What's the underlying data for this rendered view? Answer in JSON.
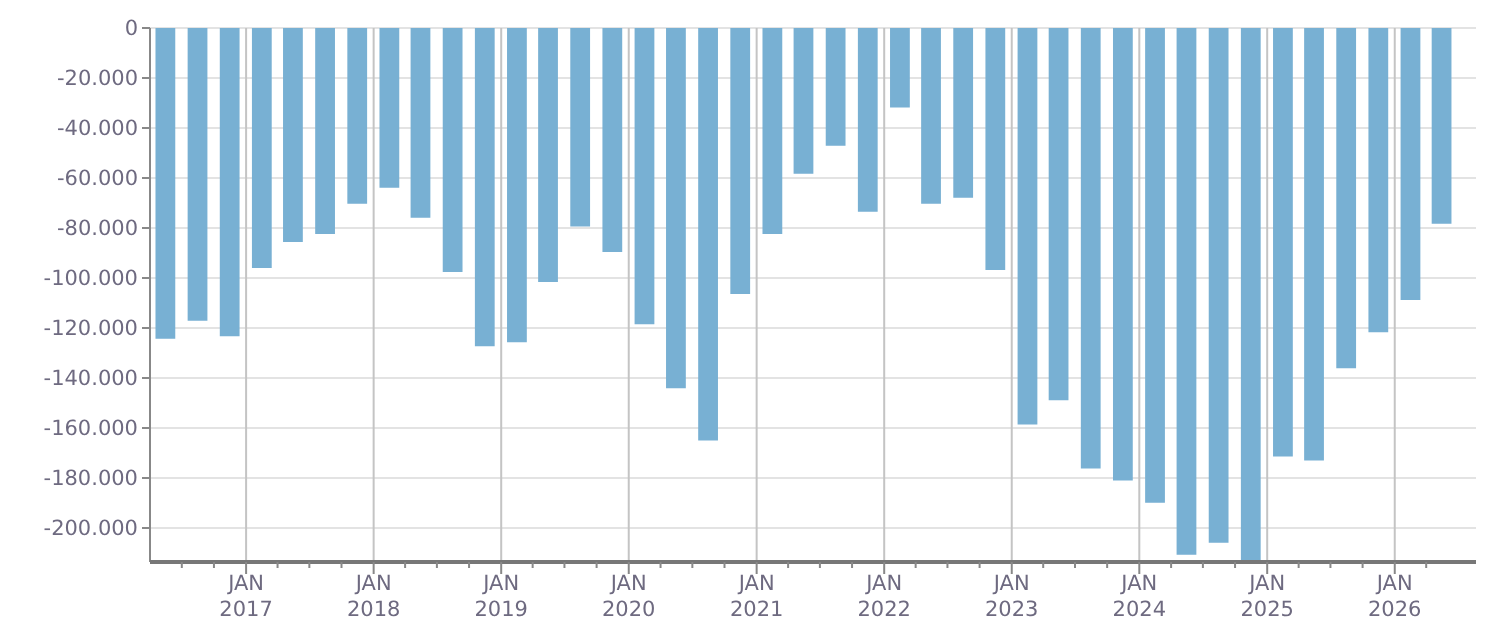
{
  "chart_data": {
    "type": "bar",
    "color": "#78b0d3",
    "x": [
      "2016-05-15",
      "2016-08-15",
      "2016-11-15",
      "2017-02-15",
      "2017-05-15",
      "2017-08-15",
      "2017-11-15",
      "2018-02-15",
      "2018-05-15",
      "2018-08-15",
      "2018-11-15",
      "2019-02-15",
      "2019-05-15",
      "2019-08-15",
      "2019-11-15",
      "2020-02-15",
      "2020-05-15",
      "2020-08-15",
      "2020-11-15",
      "2021-02-15",
      "2021-05-15",
      "2021-08-15",
      "2021-11-15",
      "2022-02-15",
      "2022-05-15",
      "2022-08-15",
      "2022-11-15",
      "2023-02-15",
      "2023-05-15",
      "2023-08-15",
      "2023-11-15",
      "2024-02-15",
      "2024-05-15",
      "2024-08-15",
      "2024-11-15",
      "2025-02-15",
      "2025-05-15",
      "2025-08-15",
      "2025-11-15",
      "2026-02-15",
      "2026-05-15"
    ],
    "values": [
      -124300,
      -117100,
      -123300,
      -96000,
      -85600,
      -82400,
      -70300,
      -63900,
      -75900,
      -97600,
      -127300,
      -125700,
      -101600,
      -79400,
      -89600,
      -118500,
      -144100,
      -165000,
      -106400,
      -82400,
      -58300,
      -47100,
      -73500,
      -31800,
      -70300,
      -67900,
      -96800,
      -158600,
      -148900,
      -176200,
      -181000,
      -189900,
      -210700,
      -205900,
      -213400,
      -171400,
      -173000,
      -136100,
      -121700,
      -108800,
      -78300
    ],
    "xlim": [
      "2016-04",
      "2026-07"
    ],
    "xticks": [
      {
        "value": "2016-07",
        "label": null
      },
      {
        "value": "2016-10",
        "label": null
      },
      {
        "value": "2017-01",
        "label": "JAN 2017"
      },
      {
        "value": "2017-04",
        "label": null
      },
      {
        "value": "2017-07",
        "label": null
      },
      {
        "value": "2017-10",
        "label": null
      },
      {
        "value": "2018-01",
        "label": "JAN 2018"
      },
      {
        "value": "2018-04",
        "label": null
      },
      {
        "value": "2018-07",
        "label": null
      },
      {
        "value": "2018-10",
        "label": null
      },
      {
        "value": "2019-01",
        "label": "JAN 2019"
      },
      {
        "value": "2019-04",
        "label": null
      },
      {
        "value": "2019-07",
        "label": null
      },
      {
        "value": "2019-10",
        "label": null
      },
      {
        "value": "2020-01",
        "label": "JAN 2020"
      },
      {
        "value": "2020-04",
        "label": null
      },
      {
        "value": "2020-07",
        "label": null
      },
      {
        "value": "2020-10",
        "label": null
      },
      {
        "value": "2021-01",
        "label": "JAN 2021"
      },
      {
        "value": "2021-04",
        "label": null
      },
      {
        "value": "2021-07",
        "label": null
      },
      {
        "value": "2021-10",
        "label": null
      },
      {
        "value": "2022-01",
        "label": "JAN 2022"
      },
      {
        "value": "2022-04",
        "label": null
      },
      {
        "value": "2022-07",
        "label": null
      },
      {
        "value": "2022-10",
        "label": null
      },
      {
        "value": "2023-01",
        "label": "JAN 2023"
      },
      {
        "value": "2023-04",
        "label": null
      },
      {
        "value": "2023-07",
        "label": null
      },
      {
        "value": "2023-10",
        "label": null
      },
      {
        "value": "2024-01",
        "label": "JAN 2024"
      },
      {
        "value": "2024-04",
        "label": null
      },
      {
        "value": "2024-07",
        "label": null
      },
      {
        "value": "2024-10",
        "label": null
      },
      {
        "value": "2025-01",
        "label": "JAN 2025"
      },
      {
        "value": "2025-04",
        "label": null
      },
      {
        "value": "2025-07",
        "label": null
      },
      {
        "value": "2025-10",
        "label": null
      },
      {
        "value": "2026-01",
        "label": "JAN 2026"
      },
      {
        "value": "2026-04",
        "label": null
      }
    ],
    "ylim": [
      -213600,
      0
    ],
    "yticks": [
      {
        "value": 0,
        "label": "0"
      },
      {
        "value": -20000,
        "label": "-20.000"
      },
      {
        "value": -40000,
        "label": "-40.000"
      },
      {
        "value": -60000,
        "label": "-60.000"
      },
      {
        "value": -80000,
        "label": "-80.000"
      },
      {
        "value": -100000,
        "label": "-100.000"
      },
      {
        "value": -120000,
        "label": "-120.000"
      },
      {
        "value": -140000,
        "label": "-140.000"
      },
      {
        "value": -160000,
        "label": "-160.000"
      },
      {
        "value": -180000,
        "label": "-180.000"
      },
      {
        "value": -200000,
        "label": "-200.000"
      }
    ],
    "grid": true
  }
}
